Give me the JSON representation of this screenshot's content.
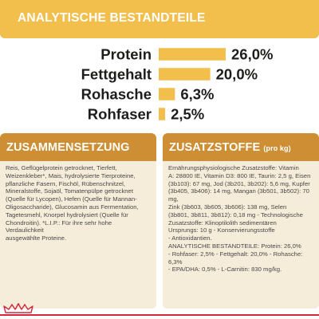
{
  "header": {
    "title": "ANALYTISCHE BESTANDTEILE"
  },
  "chart_data": {
    "type": "bar",
    "orientation": "horizontal",
    "title": "ANALYTISCHE BESTANDTEILE",
    "categories": [
      "Protein",
      "Fettgehalt",
      "Rohasche",
      "Rohfaser"
    ],
    "values": [
      26.0,
      20.0,
      6.3,
      2.5
    ],
    "value_labels": [
      "26,0%",
      "20,0%",
      "6,3%",
      "2,5%"
    ],
    "unit": "%",
    "xlim": [
      0,
      26.0
    ],
    "grid": false,
    "legend": "none",
    "bar_color": "#f2bf4c"
  },
  "composition": {
    "title": "ZUSAMMENSETZUNG",
    "lines": [
      "Reis, Geflügelprotein getrocknet, Tierfett,",
      "Weizenkleber*, Mais, hydrolysierte Tierproteine,",
      "pflanzliche Fasern, Fischöl, Rübenschnitzel,",
      "Mineralstoffe, Sojaöl, Tomatenpülpe getrocknet",
      "(Quelle für Lycopen), Hefen (Quelle für Mannan-",
      "Oligosaccharide), Glucosamin aus Fermentation,",
      "Tagetesmehl, Knorpel hydrolysiert (Quelle für",
      "Chondroitin). *L.I.P.: Für ihre sehr hohe Verdaulichkeit",
      "ausgewählte Proteine."
    ]
  },
  "additives": {
    "title": "ZUSATZSTOFFE",
    "title_suffix": "(pro kg)",
    "lines": [
      "Ernährungsphysiologische Zusatzstoffe: Vitamin",
      "A: 28800 IE, Vitamin D3: 800 IE, Taurin: 2,5 g, Eisen",
      "(3b103): 67 mg, Jod (3b201, 3b202): 5,6 mg, Kupfer",
      "(3b405, 3b406): 14 mg, Mangan (3b501, 3b502): 70 mg,",
      "Zink (3b603, 3b605, 3b606): 138 mg, Selen",
      "(3b801, 3b811, 3b812): 0,18 mg - Technologische",
      "Zusatzstoffe: Klinoptilolith sedimentären",
      "Ursprungs: 10 g - Konservierungsstoffe",
      "- Antioxidantien.",
      "ANALYTISCHE BESTANDTEILE: Protein: 26,0%",
      "- Rohfaser: 2,5% - Fettgehalt: 20,0% - Rohasche: 6,3%",
      "- EPA/DHA: 0,5% - L-Carnitin: 830 mg/kg."
    ]
  },
  "colors": {
    "accent_yellow": "#f2bf4c",
    "section_brown": "#cd8e34",
    "panel_beige": "#f5ecd9",
    "brand_red": "#d3273a"
  },
  "footer": {
    "logo_icon": "royal-canin-crown-icon"
  }
}
